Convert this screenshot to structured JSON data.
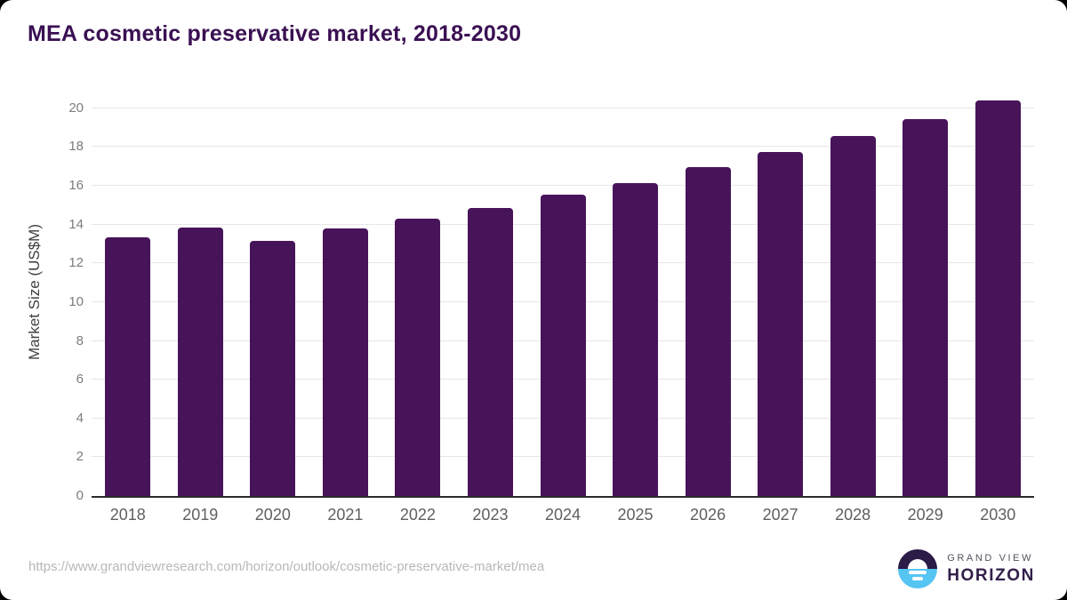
{
  "title": "MEA cosmetic preservative market, 2018-2030",
  "chart_data": {
    "type": "bar",
    "title": "MEA cosmetic preservative market, 2018-2030",
    "categories": [
      "2018",
      "2019",
      "2020",
      "2021",
      "2022",
      "2023",
      "2024",
      "2025",
      "2026",
      "2027",
      "2028",
      "2029",
      "2030"
    ],
    "values": [
      13.35,
      13.85,
      13.15,
      13.8,
      14.3,
      14.85,
      15.55,
      16.15,
      16.95,
      17.75,
      18.55,
      19.45,
      20.4
    ],
    "xlabel": "",
    "ylabel": "Market Size (US$M)",
    "yticks": [
      0,
      2,
      4,
      6,
      8,
      10,
      12,
      14,
      16,
      18,
      20
    ],
    "ylim": [
      0,
      21
    ],
    "grid": "horizontal",
    "legend": "none",
    "bar_color": "#471359"
  },
  "colors": {
    "title_text": "#3a1053",
    "bar": "#471359",
    "axis_line": "#2b2b2b",
    "gridline": "#e7e7e7",
    "y_tick_text": "#7c7c7c",
    "x_tick_text": "#5f5f5f",
    "url_text": "#b8b8b8",
    "logo_purple": "#2b1b47",
    "logo_blue": "#56c5f2"
  },
  "footer": {
    "source_url": "https://www.grandviewresearch.com/horizon/outlook/cosmetic-preservative-market/mea",
    "logo": {
      "brand_top": "GRAND VIEW",
      "brand_bottom": "HORIZON"
    }
  }
}
